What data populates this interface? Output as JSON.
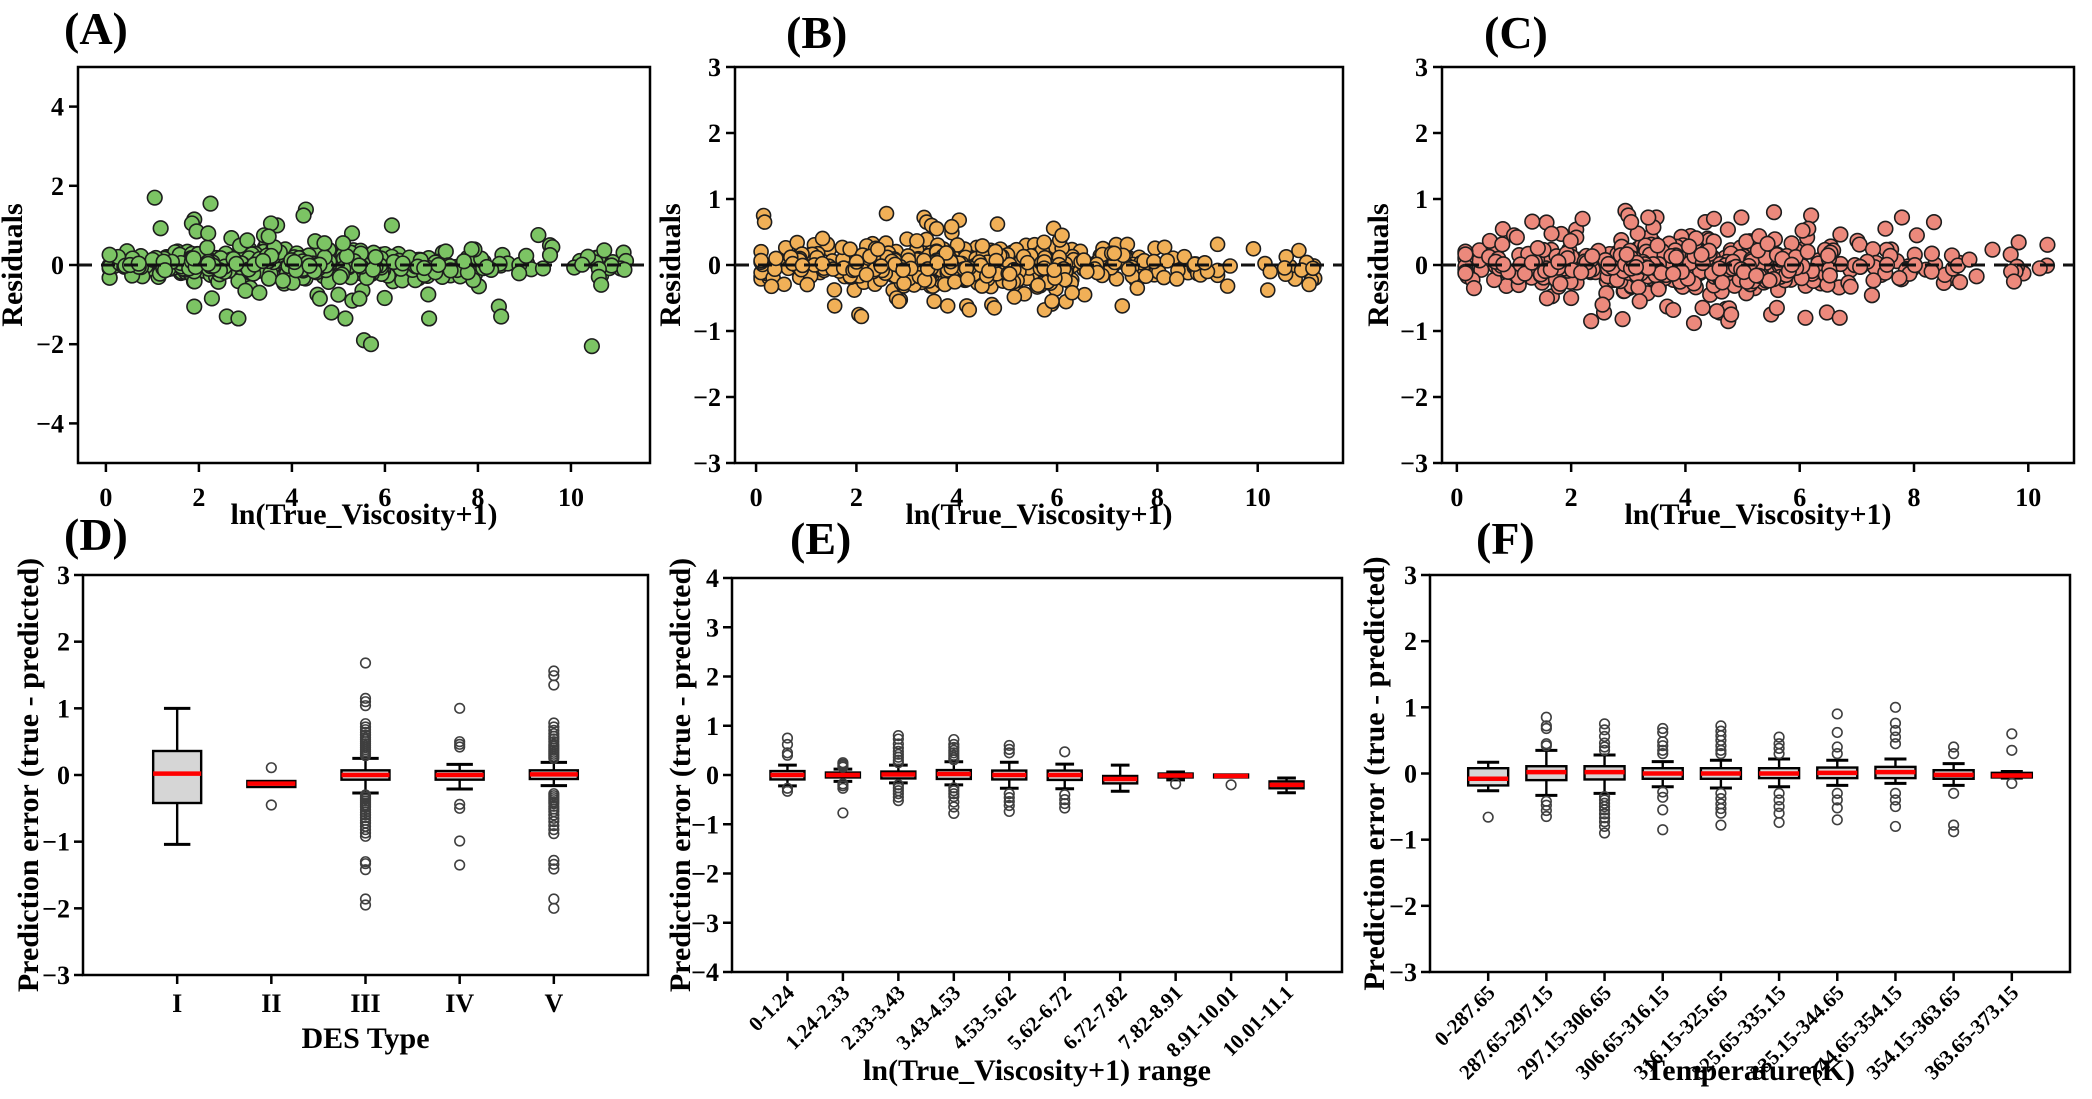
{
  "figure_title": "",
  "chart_data": [
    {
      "id": "A",
      "panel_label": "(A)",
      "type": "scatter",
      "xlabel": "ln(True_Viscosity+1)",
      "ylabel": "Residuals",
      "xlim": [
        -0.6,
        11.7
      ],
      "ylim": [
        -5,
        5
      ],
      "xticks": [
        0,
        2,
        4,
        6,
        8,
        10
      ],
      "yticks": [
        -4,
        -2,
        0,
        2,
        4
      ],
      "zero_line_y": 0,
      "marker": {
        "fill": "#7cc464",
        "edge": "#1d1d1d",
        "radius": 7.3
      },
      "cloud": {
        "seed": 42,
        "n": 470,
        "x_mean": 3.9,
        "x_sd": 1.85,
        "x_min": 0.08,
        "x_max": 9.3,
        "uniform_frac": 0.18,
        "uniform_max": 9.2,
        "tail_frac": 0.03,
        "tail_min": 9.3,
        "tail_max": 11.2,
        "y_sd": 0.18,
        "wide_frac": 0.13,
        "wide_mult": 2.3,
        "y_clip": 1.0
      },
      "extra_points": [
        [
          1.05,
          1.7
        ],
        [
          2.25,
          1.55
        ],
        [
          4.3,
          1.4
        ],
        [
          4.25,
          1.25
        ],
        [
          1.9,
          1.15
        ],
        [
          1.85,
          1.05
        ],
        [
          3.55,
          1.05
        ],
        [
          6.15,
          1.0
        ],
        [
          1.95,
          0.85
        ],
        [
          2.2,
          0.8
        ],
        [
          3.4,
          0.75
        ],
        [
          3.5,
          0.72
        ],
        [
          9.55,
          0.5
        ],
        [
          9.6,
          0.45
        ],
        [
          9.55,
          0.25
        ],
        [
          1.9,
          -1.05
        ],
        [
          2.6,
          -1.3
        ],
        [
          2.85,
          -1.35
        ],
        [
          4.85,
          -1.2
        ],
        [
          5.15,
          -1.35
        ],
        [
          6.95,
          -1.35
        ],
        [
          8.45,
          -1.05
        ],
        [
          8.5,
          -1.3
        ],
        [
          5.55,
          -1.9
        ],
        [
          5.7,
          -2.0
        ],
        [
          10.45,
          -2.05
        ],
        [
          10.6,
          -0.1
        ],
        [
          10.6,
          -0.3
        ],
        [
          10.65,
          -0.5
        ],
        [
          11.15,
          -0.12
        ],
        [
          4.55,
          -0.75
        ],
        [
          4.6,
          -0.85
        ],
        [
          5.0,
          -0.75
        ],
        [
          5.3,
          -0.9
        ],
        [
          5.45,
          -0.85
        ],
        [
          3.0,
          -0.65
        ],
        [
          3.3,
          -0.7
        ],
        [
          4.5,
          0.6
        ],
        [
          4.7,
          0.55
        ],
        [
          5.1,
          0.55
        ]
      ]
    },
    {
      "id": "B",
      "panel_label": "(B)",
      "type": "scatter",
      "xlabel": "ln(True_Viscosity+1)",
      "ylabel": "Residuals",
      "xlim": [
        -0.42,
        11.7
      ],
      "ylim": [
        -3,
        3
      ],
      "xticks": [
        0,
        2,
        4,
        6,
        8,
        10
      ],
      "yticks": [
        -3,
        -2,
        -1,
        0,
        1,
        2,
        3
      ],
      "zero_line_y": 0,
      "marker": {
        "fill": "#f1b057",
        "edge": "#1d1d1d",
        "radius": 7
      },
      "cloud": {
        "seed": 43,
        "n": 580,
        "x_mean": 4.0,
        "x_sd": 1.8,
        "x_min": 0.1,
        "x_max": 9.2,
        "uniform_frac": 0.2,
        "uniform_max": 9.0,
        "tail_frac": 0.025,
        "tail_min": 9.2,
        "tail_max": 11.15,
        "y_sd": 0.14,
        "wide_frac": 0.12,
        "wide_mult": 2.1,
        "y_clip": 0.62
      },
      "extra_points": [
        [
          0.15,
          0.75
        ],
        [
          0.17,
          0.65
        ],
        [
          2.6,
          0.78
        ],
        [
          3.35,
          0.72
        ],
        [
          3.4,
          0.65
        ],
        [
          3.5,
          0.6
        ],
        [
          4.05,
          0.68
        ],
        [
          3.6,
          0.55
        ],
        [
          3.9,
          0.58
        ],
        [
          2.05,
          -0.75
        ],
        [
          2.1,
          -0.78
        ],
        [
          3.55,
          -0.55
        ],
        [
          4.2,
          -0.62
        ],
        [
          4.25,
          -0.68
        ],
        [
          4.7,
          -0.6
        ],
        [
          4.75,
          -0.65
        ],
        [
          5.75,
          -0.68
        ],
        [
          6.55,
          -0.45
        ],
        [
          7.3,
          -0.62
        ],
        [
          9.4,
          -0.32
        ],
        [
          10.2,
          -0.38
        ],
        [
          10.25,
          -0.1
        ],
        [
          11.1,
          -0.05
        ],
        [
          5.9,
          -0.55
        ],
        [
          6.3,
          -0.42
        ],
        [
          2.8,
          -0.5
        ],
        [
          2.85,
          -0.55
        ],
        [
          6.1,
          0.45
        ],
        [
          7.6,
          -0.35
        ]
      ]
    },
    {
      "id": "C",
      "panel_label": "(C)",
      "type": "scatter",
      "xlabel": "ln(True_Viscosity+1)",
      "ylabel": "Residuals",
      "xlim": [
        -0.26,
        10.8
      ],
      "ylim": [
        -3,
        3
      ],
      "xticks": [
        0,
        2,
        4,
        6,
        8,
        10
      ],
      "yticks": [
        -3,
        -2,
        -1,
        0,
        1,
        2,
        3
      ],
      "zero_line_y": 0,
      "marker": {
        "fill": "#ec897c",
        "edge": "#1d1d1d",
        "radius": 7.3
      },
      "cloud": {
        "seed": 44,
        "n": 560,
        "x_mean": 3.9,
        "x_sd": 1.8,
        "x_min": 0.15,
        "x_max": 9.2,
        "uniform_frac": 0.2,
        "uniform_max": 9.0,
        "tail_frac": 0.02,
        "tail_min": 9.2,
        "tail_max": 10.35,
        "y_sd": 0.17,
        "wide_frac": 0.15,
        "wide_mult": 2.0,
        "y_clip": 0.72
      },
      "extra_points": [
        [
          2.2,
          0.7
        ],
        [
          2.95,
          0.82
        ],
        [
          3.0,
          0.75
        ],
        [
          3.05,
          0.65
        ],
        [
          3.35,
          0.72
        ],
        [
          4.35,
          0.65
        ],
        [
          4.5,
          0.7
        ],
        [
          5.55,
          0.8
        ],
        [
          6.2,
          0.75
        ],
        [
          6.15,
          0.55
        ],
        [
          6.05,
          0.52
        ],
        [
          7.5,
          0.55
        ],
        [
          8.05,
          0.45
        ],
        [
          8.35,
          0.65
        ],
        [
          2.35,
          -0.85
        ],
        [
          2.9,
          -0.82
        ],
        [
          4.15,
          -0.88
        ],
        [
          4.3,
          -0.65
        ],
        [
          4.55,
          -0.7
        ],
        [
          4.75,
          -0.85
        ],
        [
          4.8,
          -0.75
        ],
        [
          5.5,
          -0.75
        ],
        [
          5.6,
          -0.65
        ],
        [
          6.1,
          -0.8
        ],
        [
          6.7,
          -0.8
        ],
        [
          2.0,
          -0.5
        ],
        [
          2.55,
          -0.6
        ],
        [
          3.2,
          -0.55
        ],
        [
          1.0,
          0.45
        ],
        [
          1.05,
          0.42
        ],
        [
          0.3,
          -0.35
        ],
        [
          9.7,
          -0.1
        ],
        [
          9.75,
          -0.25
        ],
        [
          10.2,
          -0.05
        ]
      ]
    },
    {
      "id": "D",
      "panel_label": "(D)",
      "type": "box",
      "xlabel": "DES Type",
      "ylabel": "Prediction error (true - predicted)",
      "ylim": [
        -3,
        3
      ],
      "yticks": [
        -3,
        -2,
        -1,
        0,
        1,
        2,
        3
      ],
      "rotate_labels": false,
      "box_fill": "#d6d6d6",
      "median_color": "#ff0000",
      "categories": [
        "I",
        "II",
        "III",
        "IV",
        "V"
      ],
      "boxes": [
        {
          "med": 0.02,
          "q1": -0.42,
          "q3": 0.36,
          "lo": -1.04,
          "hi": 1.0,
          "out": []
        },
        {
          "med": -0.13,
          "q1": -0.18,
          "q3": -0.09,
          "lo": -0.18,
          "hi": -0.09,
          "out": [
            0.11,
            -0.45
          ]
        },
        {
          "med": 0.0,
          "q1": -0.07,
          "q3": 0.07,
          "lo": -0.27,
          "hi": 0.25,
          "out": [
            0.29,
            0.32,
            0.35,
            0.38,
            0.41,
            0.44,
            0.47,
            0.5,
            0.53,
            0.56,
            0.6,
            0.64,
            0.68,
            0.72,
            0.77,
            1.04,
            1.1,
            1.15,
            1.68,
            -0.3,
            -0.33,
            -0.36,
            -0.39,
            -0.42,
            -0.45,
            -0.48,
            -0.52,
            -0.56,
            -0.6,
            -0.64,
            -0.68,
            -0.72,
            -0.77,
            -0.82,
            -0.87,
            -0.92,
            -1.3,
            -1.33,
            -1.42,
            -1.86,
            -1.95
          ]
        },
        {
          "med": 0.0,
          "q1": -0.07,
          "q3": 0.06,
          "lo": -0.21,
          "hi": 0.16,
          "out": [
            1.0,
            0.5,
            0.46,
            0.42,
            -0.44,
            -0.5,
            -0.99,
            -1.35
          ]
        },
        {
          "med": 0.01,
          "q1": -0.06,
          "q3": 0.07,
          "lo": -0.16,
          "hi": 0.19,
          "out": [
            0.25,
            0.28,
            0.31,
            0.34,
            0.37,
            0.4,
            0.43,
            0.46,
            0.5,
            0.54,
            0.58,
            0.62,
            0.67,
            0.72,
            0.78,
            1.35,
            1.49,
            1.56,
            -0.28,
            -0.31,
            -0.34,
            -0.37,
            -0.4,
            -0.43,
            -0.47,
            -0.51,
            -0.55,
            -0.6,
            -0.65,
            -0.7,
            -0.76,
            -0.82,
            -0.88,
            -1.28,
            -1.34,
            -1.41,
            -1.86,
            -2.0
          ]
        }
      ]
    },
    {
      "id": "E",
      "panel_label": "(E)",
      "type": "box",
      "xlabel": "ln(True_Viscosity+1) range",
      "ylabel": "Prediction error (true - predicted)",
      "ylim": [
        -4,
        4
      ],
      "yticks": [
        -4,
        -3,
        -2,
        -1,
        0,
        1,
        2,
        3,
        4
      ],
      "rotate_labels": true,
      "box_fill": "#d6d6d6",
      "median_color": "#ff0000",
      "categories": [
        "0-1.24",
        "1.24-2.33",
        "2.33-3.43",
        "3.43-4.53",
        "4.53-5.62",
        "5.62-6.72",
        "6.72-7.82",
        "7.82-8.91",
        "8.91-10.01",
        "10.01-11.1"
      ],
      "boxes": [
        {
          "med": 0.0,
          "q1": -0.09,
          "q3": 0.08,
          "lo": -0.22,
          "hi": 0.2,
          "out": [
            0.75,
            0.62,
            0.45,
            0.4,
            -0.27,
            -0.33
          ]
        },
        {
          "med": 0.0,
          "q1": -0.05,
          "q3": 0.05,
          "lo": -0.13,
          "hi": 0.12,
          "out": [
            0.25,
            0.22,
            0.19,
            0.16,
            -0.18,
            -0.22,
            -0.27,
            -0.77
          ]
        },
        {
          "med": 0.01,
          "q1": -0.07,
          "q3": 0.07,
          "lo": -0.16,
          "hi": 0.2,
          "out": [
            0.8,
            0.73,
            0.63,
            0.55,
            0.48,
            0.42,
            0.36,
            0.3,
            0.25,
            -0.2,
            -0.26,
            -0.32,
            -0.38,
            -0.45,
            -0.52
          ]
        },
        {
          "med": 0.02,
          "q1": -0.08,
          "q3": 0.1,
          "lo": -0.2,
          "hi": 0.27,
          "out": [
            0.72,
            0.62,
            0.56,
            0.5,
            0.45,
            0.4,
            0.35,
            0.31,
            -0.26,
            -0.32,
            -0.38,
            -0.44,
            -0.55,
            -0.65,
            -0.78
          ]
        },
        {
          "med": 0.0,
          "q1": -0.09,
          "q3": 0.09,
          "lo": -0.27,
          "hi": 0.26,
          "out": [
            0.6,
            0.52,
            0.45,
            -0.38,
            -0.46,
            -0.54,
            -0.62,
            -0.74
          ]
        },
        {
          "med": 0.0,
          "q1": -0.1,
          "q3": 0.09,
          "lo": -0.28,
          "hi": 0.22,
          "out": [
            0.47,
            -0.4,
            -0.5,
            -0.58,
            -0.67
          ]
        },
        {
          "med": -0.08,
          "q1": -0.17,
          "q3": -0.02,
          "lo": -0.33,
          "hi": 0.2,
          "out": []
        },
        {
          "med": -0.01,
          "q1": -0.05,
          "q3": 0.03,
          "lo": -0.1,
          "hi": 0.06,
          "out": [
            -0.18
          ]
        },
        {
          "med": -0.02,
          "q1": -0.05,
          "q3": 0.01,
          "lo": -0.05,
          "hi": 0.01,
          "out": [
            -0.2
          ]
        },
        {
          "med": -0.2,
          "q1": -0.27,
          "q3": -0.13,
          "lo": -0.36,
          "hi": -0.06,
          "out": []
        }
      ]
    },
    {
      "id": "F",
      "panel_label": "(F)",
      "type": "box",
      "xlabel": "Temperature(K)",
      "ylabel": "Prediction error (true - predicted)",
      "ylim": [
        -3,
        3
      ],
      "yticks": [
        -3,
        -2,
        -1,
        0,
        1,
        2,
        3
      ],
      "rotate_labels": true,
      "box_fill": "#d6d6d6",
      "median_color": "#ff0000",
      "categories": [
        "0-287.65",
        "287.65-297.15",
        "297.15-306.65",
        "306.65-316.15",
        "316.15-325.65",
        "325.65-335.15",
        "335.15-344.65",
        "344.65-354.15",
        "354.15-363.65",
        "363.65-373.15"
      ],
      "boxes": [
        {
          "med": -0.08,
          "q1": -0.18,
          "q3": 0.08,
          "lo": -0.26,
          "hi": 0.17,
          "out": [
            -0.66
          ]
        },
        {
          "med": 0.02,
          "q1": -0.1,
          "q3": 0.11,
          "lo": -0.33,
          "hi": 0.35,
          "out": [
            0.85,
            0.72,
            0.68,
            0.45,
            0.42,
            -0.42,
            -0.48,
            -0.56,
            -0.65
          ]
        },
        {
          "med": 0.02,
          "q1": -0.09,
          "q3": 0.11,
          "lo": -0.3,
          "hi": 0.28,
          "out": [
            0.75,
            0.66,
            0.56,
            0.46,
            0.4,
            0.35,
            -0.35,
            -0.4,
            -0.45,
            -0.5,
            -0.55,
            -0.61,
            -0.67,
            -0.73,
            -0.8,
            -0.9
          ]
        },
        {
          "med": 0.0,
          "q1": -0.08,
          "q3": 0.08,
          "lo": -0.2,
          "hi": 0.18,
          "out": [
            0.68,
            0.62,
            0.48,
            0.42,
            0.35,
            0.3,
            -0.28,
            -0.36,
            -0.55,
            -0.85
          ]
        },
        {
          "med": 0.0,
          "q1": -0.08,
          "q3": 0.08,
          "lo": -0.22,
          "hi": 0.2,
          "out": [
            0.72,
            0.64,
            0.57,
            0.5,
            0.42,
            0.35,
            0.3,
            -0.3,
            -0.38,
            -0.46,
            -0.53,
            -0.6,
            -0.78
          ]
        },
        {
          "med": 0.0,
          "q1": -0.07,
          "q3": 0.08,
          "lo": -0.2,
          "hi": 0.22,
          "out": [
            0.55,
            0.45,
            0.38,
            0.3,
            -0.3,
            -0.4,
            -0.5,
            -0.6,
            -0.74
          ]
        },
        {
          "med": 0.01,
          "q1": -0.07,
          "q3": 0.09,
          "lo": -0.18,
          "hi": 0.2,
          "out": [
            0.9,
            0.62,
            0.4,
            0.3,
            -0.3,
            -0.4,
            -0.52,
            -0.7
          ]
        },
        {
          "med": 0.02,
          "q1": -0.07,
          "q3": 0.1,
          "lo": -0.15,
          "hi": 0.22,
          "out": [
            1.0,
            0.76,
            0.65,
            0.55,
            0.45,
            -0.3,
            -0.4,
            -0.5,
            -0.8
          ]
        },
        {
          "med": -0.02,
          "q1": -0.08,
          "q3": 0.05,
          "lo": -0.18,
          "hi": 0.15,
          "out": [
            0.4,
            0.3,
            -0.3,
            -0.78,
            -0.88
          ]
        },
        {
          "med": -0.03,
          "q1": -0.06,
          "q3": 0.01,
          "lo": -0.07,
          "hi": 0.03,
          "out": [
            0.6,
            0.35,
            -0.15
          ]
        }
      ]
    }
  ]
}
